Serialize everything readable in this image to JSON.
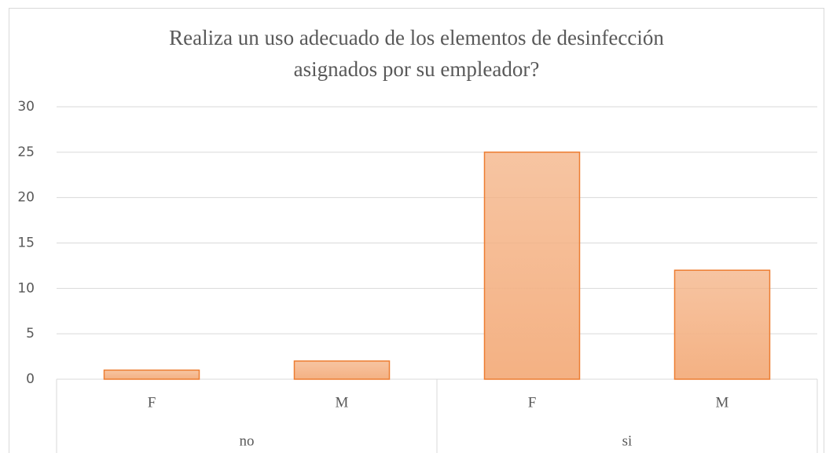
{
  "chart_data": {
    "type": "bar",
    "title": "Realiza un uso adecuado de los elementos de desinfección asignados por su empleador?",
    "categories": [
      "F",
      "M",
      "F",
      "M"
    ],
    "groups": [
      "no",
      "si"
    ],
    "values": [
      1,
      2,
      25,
      12
    ],
    "color": "#f4b183",
    "edge_color": "#ed7d31",
    "ylim": [
      0,
      30
    ],
    "yticks": [
      0,
      5,
      10,
      15,
      20,
      25,
      30
    ],
    "grid": true
  }
}
